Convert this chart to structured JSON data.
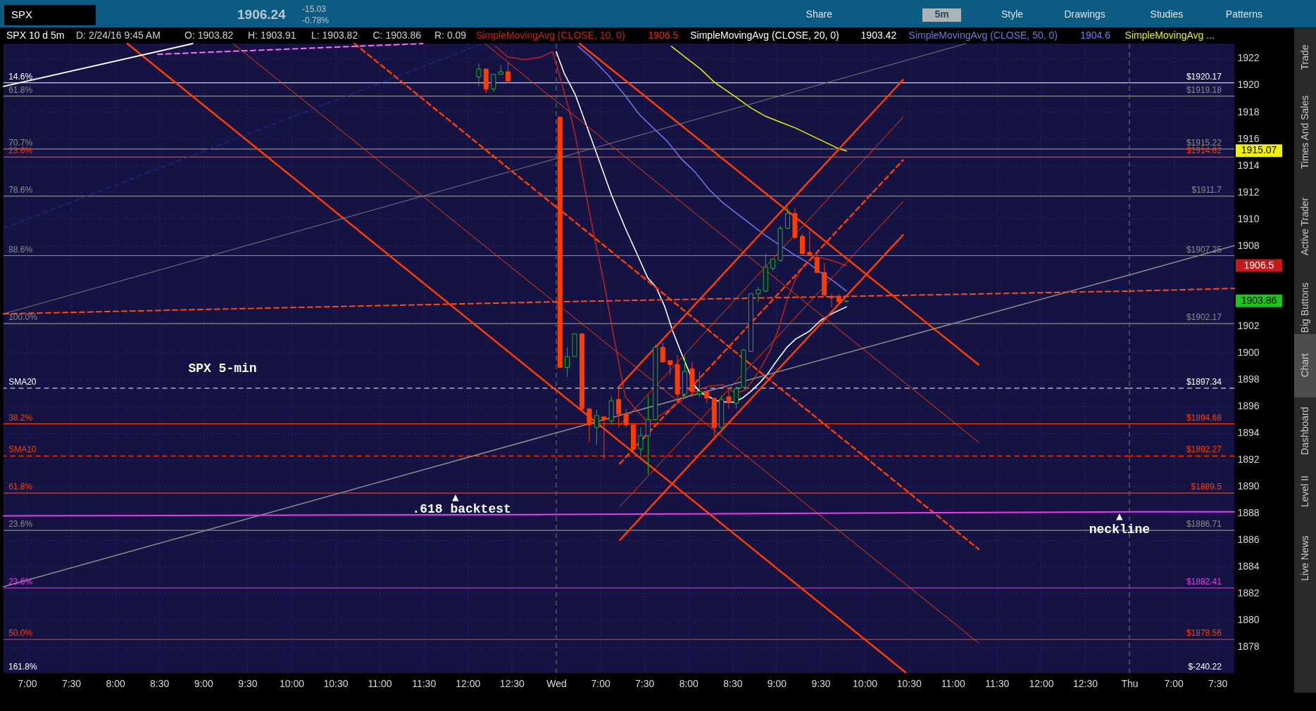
{
  "chart_data": [
    {
      "type": "candlestick",
      "title": "SPX 10 d 5m",
      "x": [
        12.125,
        12.208,
        12.292,
        12.375,
        12.458
      ],
      "ohlc": [
        [
          1920.6,
          1921.6,
          1919.9,
          1921.2
        ],
        [
          1921.2,
          1921.2,
          1919.4,
          1919.7
        ],
        [
          1919.7,
          1920.8,
          1919.5,
          1920.8
        ],
        [
          1920.8,
          1921.5,
          1920.8,
          1921.0
        ],
        [
          1921.0,
          1921.7,
          1920.3,
          1920.3
        ]
      ],
      "colors": [
        "#1db31d",
        "#ff3c00",
        "#1db31d",
        "#1db31d",
        "#ff3c00"
      ],
      "series": [
        {
          "type": "line",
          "color": "#c4201c",
          "x": [
            12.314,
            12.456,
            12.646,
            12.836,
            12.962,
            13.0
          ],
          "values": [
            1922.9,
            1922.1,
            1921.9,
            1922.1,
            1922.5,
            1921.6
          ]
        },
        {
          "type": "line",
          "color": "#ff3c00",
          "x": [
            8.138,
            13.0
          ],
          "values": [
            1923.1,
            1897.2
          ]
        },
        {
          "type": "line",
          "color": "#ff3c00",
          "x": [
            9.337,
            13.0
          ],
          "values": [
            1923.1,
            1903.7
          ]
        },
        {
          "type": "line",
          "color": "#ff3c00",
          "line_style": "dashed",
          "x": [
            10.716,
            13.0
          ],
          "values": [
            1923.1,
            1910.9
          ]
        },
        {
          "type": "line",
          "color": "#ff3c00",
          "x": [
            12.195,
            13.0
          ],
          "values": [
            1923.1,
            1918.8
          ]
        },
        {
          "type": "line",
          "color": "#8c8c8c",
          "x": [
            6.733,
            13.0
          ],
          "values": [
            1882.5,
            1894.0
          ]
        },
        {
          "type": "line",
          "color": "#7a7a7a",
          "x": [
            6.733,
            13.0
          ],
          "values": [
            1902.9,
            1914.5
          ]
        },
        {
          "type": "line",
          "color": "#ffffff",
          "x": [
            6.733,
            8.879
          ],
          "values": [
            1919.9,
            1923.1
          ]
        },
        {
          "type": "line",
          "color": "#ff6cff",
          "line_style": "dashed",
          "x": [
            8.482,
            11.488
          ],
          "values": [
            1922.3,
            1923.1
          ]
        },
        {
          "type": "line",
          "color": "#2a2a8c",
          "line_style": "dashed",
          "x": [
            6.733,
            12.167
          ],
          "values": [
            1909.3,
            1923.1
          ]
        },
        {
          "type": "line",
          "color": "#ff4a14",
          "line_style": "dashed",
          "x": [
            6.733,
            13.0
          ],
          "values": [
            1902.9,
            1903.8
          ]
        },
        {
          "type": "line",
          "color": "#e040e6",
          "x": [
            6.733,
            13.0
          ],
          "values": [
            1887.8,
            1887.9
          ]
        }
      ],
      "xlim": [
        6.733,
        13.0
      ],
      "ylim": [
        1876.05,
        1923.1
      ],
      "xticks": [
        {
          "value": 7,
          "label": "7:00"
        },
        {
          "value": 7.5,
          "label": "7:30"
        },
        {
          "value": 8,
          "label": "8:00"
        },
        {
          "value": 8.5,
          "label": "8:30"
        },
        {
          "value": 9,
          "label": "9:00"
        },
        {
          "value": 9.5,
          "label": "9:30"
        },
        {
          "value": 10,
          "label": "10:00"
        },
        {
          "value": 10.5,
          "label": "10:30"
        },
        {
          "value": 11,
          "label": "11:00"
        },
        {
          "value": 11.5,
          "label": "11:30"
        },
        {
          "value": 12,
          "label": "12:00"
        },
        {
          "value": 12.5,
          "label": "12:30"
        }
      ],
      "yticks": [
        1878,
        1880,
        1882,
        1884,
        1886,
        1888,
        1890,
        1892,
        1894,
        1896,
        1898,
        1900,
        1902,
        1908,
        1910,
        1912,
        1914,
        1916,
        1918,
        1920,
        1922
      ],
      "tick_labels": "x",
      "ref_lines": [
        {
          "axis": "y",
          "value": 1920.17,
          "color": "#ffffff"
        },
        {
          "axis": "y",
          "value": 1919.18,
          "color": "#8c8c8c"
        },
        {
          "axis": "y",
          "value": 1915.22,
          "color": "#8c8c8c"
        },
        {
          "axis": "y",
          "value": 1914.62,
          "color": "#ff3c00"
        },
        {
          "axis": "y",
          "value": 1911.7,
          "color": "#8c8c8c"
        },
        {
          "axis": "y",
          "value": 1907.25,
          "color": "#8c8c8c"
        },
        {
          "axis": "y",
          "value": 1902.17,
          "color": "#8c8c8c"
        },
        {
          "axis": "y",
          "value": 1897.34,
          "color": "#ffffff",
          "line_style": "dashed"
        },
        {
          "axis": "y",
          "value": 1894.68,
          "color": "#ff3c00"
        },
        {
          "axis": "y",
          "value": 1892.27,
          "color": "#ff3c00",
          "line_style": "dashed"
        },
        {
          "axis": "y",
          "value": 1889.5,
          "color": "#ff3c00"
        },
        {
          "axis": "y",
          "value": 1886.71,
          "color": "#8c8c8c"
        },
        {
          "axis": "y",
          "value": 1882.41,
          "color": "#e040e6"
        },
        {
          "axis": "y",
          "value": 1878.56,
          "color": "#ff3c00"
        }
      ],
      "annotations": [
        "SPX",
        "1906.24",
        "-15.03",
        "-0.78%",
        "Share",
        "5m",
        "Style",
        "Drawings",
        "Studies",
        "Patterns",
        "D: 2/24/16 9:45 AM",
        "O: 1903.82",
        "H: 1903.91",
        "L: 1903.82",
        "C: 1903.86",
        "R: 0.09",
        "SPX 5-min",
        "161.8%",
        ".618 backtest",
        {
          "text": "14.6%",
          "x": 6.79,
          "y": 1920.17
        },
        {
          "text": "61.8%",
          "x": 6.79,
          "y": 1919.18
        },
        {
          "text": "70.7%",
          "x": 6.79,
          "y": 1915.22
        },
        {
          "text": "23.6%",
          "x": 6.79,
          "y": 1914.62
        },
        {
          "text": "78.6%",
          "x": 6.79,
          "y": 1911.7
        },
        {
          "text": "88.6%",
          "x": 6.79,
          "y": 1907.25
        },
        {
          "text": "100.0%",
          "x": 6.79,
          "y": 1902.17
        },
        {
          "text": "SMA20",
          "x": 6.79,
          "y": 1897.34
        },
        {
          "text": "38.2%",
          "x": 6.79,
          "y": 1894.68
        },
        {
          "text": "SMA10",
          "x": 6.79,
          "y": 1892.27
        },
        {
          "text": "61.8%",
          "x": 6.79,
          "y": 1889.5
        },
        {
          "text": "23.6%",
          "x": 6.79,
          "y": 1886.71
        },
        {
          "text": "23.6%",
          "x": 6.79,
          "y": 1882.41
        },
        {
          "text": "50.0%",
          "x": 6.79,
          "y": 1878.56
        },
        {
          "text": "▲",
          "x": 11.86,
          "y": 1889.5
        }
      ],
      "grid": true
    },
    {
      "type": "candlestick",
      "x": [
        6.542,
        6.625,
        6.708,
        6.792,
        6.875,
        6.958,
        7.042,
        7.125,
        7.208,
        7.292,
        7.375,
        7.458,
        7.542,
        7.625,
        7.708,
        7.792,
        7.875,
        7.958,
        8.042,
        8.125,
        8.208,
        8.292,
        8.375,
        8.458,
        8.542,
        8.625,
        8.708,
        8.792,
        8.875,
        8.958,
        9.042,
        9.125,
        9.208,
        9.292,
        9.375,
        9.458,
        9.542,
        9.625,
        9.708,
        9.792
      ],
      "ohlc": [
        [
          1917.6,
          1917.6,
          1898.9,
          1898.9
        ],
        [
          1898.9,
          1900.4,
          1898.2,
          1899.7
        ],
        [
          1899.7,
          1901.4,
          1899.7,
          1901.4
        ],
        [
          1901.4,
          1901.4,
          1895.6,
          1895.8
        ],
        [
          1895.8,
          1895.8,
          1893.3,
          1894.6
        ],
        [
          1894.4,
          1895.7,
          1893.1,
          1895.3
        ],
        [
          1895.2,
          1895.2,
          1892.0,
          1895.0
        ],
        [
          1894.9,
          1896.7,
          1894.6,
          1896.4
        ],
        [
          1896.5,
          1897.3,
          1894.4,
          1895.4
        ],
        [
          1895.4,
          1895.8,
          1894.4,
          1894.6
        ],
        [
          1894.6,
          1894.6,
          1892.6,
          1892.8
        ],
        [
          1892.8,
          1894.4,
          1892.2,
          1893.8
        ],
        [
          1893.8,
          1896.8,
          1890.9,
          1895.0
        ],
        [
          1895.0,
          1900.6,
          1894.9,
          1900.4
        ],
        [
          1900.4,
          1900.7,
          1899.3,
          1899.3
        ],
        [
          1899.4,
          1899.4,
          1898.3,
          1899.1
        ],
        [
          1899.1,
          1899.8,
          1896.4,
          1896.9
        ],
        [
          1896.9,
          1899.8,
          1896.7,
          1898.6
        ],
        [
          1898.8,
          1899.3,
          1896.7,
          1897.1
        ],
        [
          1896.9,
          1898.6,
          1896.7,
          1897.1
        ],
        [
          1897.1,
          1897.2,
          1896.2,
          1896.6
        ],
        [
          1896.6,
          1896.6,
          1893.7,
          1894.4
        ],
        [
          1894.4,
          1896.8,
          1894.3,
          1896.5
        ],
        [
          1896.7,
          1897.2,
          1895.8,
          1896.3
        ],
        [
          1896.2,
          1897.5,
          1895.8,
          1897.3
        ],
        [
          1897.4,
          1900.3,
          1897.4,
          1900.2
        ],
        [
          1900.1,
          1904.4,
          1900.1,
          1904.4
        ],
        [
          1904.4,
          1904.9,
          1903.8,
          1904.7
        ],
        [
          1904.6,
          1907.4,
          1904.5,
          1906.4
        ],
        [
          1906.3,
          1907.0,
          1906.1,
          1907.0
        ],
        [
          1906.9,
          1909.5,
          1906.8,
          1909.3
        ],
        [
          1909.3,
          1910.9,
          1909.3,
          1910.4
        ],
        [
          1910.4,
          1910.8,
          1908.5,
          1908.6
        ],
        [
          1908.7,
          1908.9,
          1907.3,
          1907.4
        ],
        [
          1907.5,
          1909.1,
          1907.2,
          1907.3
        ],
        [
          1907.1,
          1907.4,
          1905.9,
          1906.0
        ],
        [
          1906.0,
          1906.7,
          1904.2,
          1904.3
        ],
        [
          1904.2,
          1904.4,
          1903.4,
          1904.1
        ],
        [
          1904.2,
          1904.4,
          1903.7,
          1903.8
        ],
        [
          1903.82,
          1903.91,
          1903.82,
          1903.86
        ]
      ],
      "colors": [
        "#ff3c00",
        "#1db31d",
        "#1db31d",
        "#ff3c00",
        "#ff3c00",
        "#1db31d",
        "#ff3c00",
        "#1db31d",
        "#ff3c00",
        "#ff3c00",
        "#ff3c00",
        "#1db31d",
        "#1db31d",
        "#1db31d",
        "#ff3c00",
        "#ff3c00",
        "#ff3c00",
        "#1db31d",
        "#ff3c00",
        "#1db31d",
        "#ff3c00",
        "#ff3c00",
        "#1db31d",
        "#ff3c00",
        "#1db31d",
        "#1db31d",
        "#1db31d",
        "#1db31d",
        "#1db31d",
        "#1db31d",
        "#1db31d",
        "#1db31d",
        "#ff3c00",
        "#ff3c00",
        "#ff3c00",
        "#ff3c00",
        "#ff3c00",
        "#ff3c00",
        "#ff3c00",
        "#1db31d"
      ],
      "series": [
        {
          "name": "SimpleMovingAvg (CLOSE, 10, 0)",
          "type": "line",
          "color": "#c4201c",
          "x": [
            6.5,
            6.525,
            6.652,
            6.715,
            6.826,
            6.936,
            7.031,
            7.158,
            7.284,
            7.411,
            7.537,
            7.632,
            7.79,
            7.917,
            8.075,
            8.233,
            8.391,
            8.47,
            8.549,
            8.644,
            8.739,
            8.834,
            8.929,
            9.023,
            9.118,
            9.213,
            9.308,
            9.403,
            9.498,
            9.624,
            9.792
          ],
          "values": [
            1921.6,
            1921.0,
            1918.0,
            1916.3,
            1912.2,
            1908.5,
            1905.6,
            1901.0,
            1896.7,
            1895.7,
            1894.8,
            1895.1,
            1895.8,
            1896.4,
            1897.1,
            1897.5,
            1897.6,
            1897.2,
            1897.0,
            1897.2,
            1898.0,
            1899.0,
            1900.2,
            1901.8,
            1903.9,
            1905.5,
            1906.5,
            1907.1,
            1907.1,
            1906.9,
            1906.5
          ]
        },
        {
          "name": "SimpleMovingAvg (CLOSE, 20, 0)",
          "type": "line",
          "color": "#ffffff",
          "x": [
            6.5,
            6.589,
            6.715,
            6.842,
            6.968,
            7.126,
            7.284,
            7.442,
            7.537,
            7.632,
            7.727,
            7.822,
            7.917,
            8.011,
            8.075,
            8.138,
            8.233,
            8.328,
            8.423,
            8.517,
            8.612,
            8.707,
            8.802,
            8.897,
            8.992,
            9.118,
            9.213,
            9.371,
            9.498,
            9.624,
            9.792
          ],
          "values": [
            1922.5,
            1920.9,
            1919.3,
            1917.0,
            1914.7,
            1911.8,
            1909.3,
            1907.0,
            1905.6,
            1904.9,
            1903.5,
            1901.6,
            1900.0,
            1898.5,
            1897.5,
            1897.0,
            1896.7,
            1896.4,
            1896.3,
            1896.3,
            1896.6,
            1897.1,
            1897.7,
            1898.4,
            1899.3,
            1900.4,
            1901.0,
            1901.6,
            1902.4,
            1902.9,
            1903.42
          ]
        },
        {
          "name": "SimpleMovingAvg (CLOSE, 50, 0)",
          "type": "line",
          "color": "#7474e8",
          "x": [
            6.747,
            6.905,
            7.095,
            7.284,
            7.442,
            7.6,
            7.759,
            7.917,
            8.075,
            8.233,
            8.391,
            8.549,
            8.707,
            8.865,
            9.023,
            9.182,
            9.34,
            9.498,
            9.656,
            9.792
          ],
          "values": [
            1922.9,
            1922.0,
            1920.7,
            1919.2,
            1917.8,
            1916.8,
            1915.8,
            1914.5,
            1913.5,
            1912.2,
            1911.2,
            1910.4,
            1909.6,
            1908.8,
            1908.1,
            1907.4,
            1906.8,
            1906.0,
            1905.3,
            1904.6
          ]
        },
        {
          "name": "SimpleMovingAvg ...",
          "type": "line",
          "color": "#e8f000",
          "x": [
            7.806,
            7.98,
            8.138,
            8.296,
            8.517,
            8.707,
            8.865,
            9.055,
            9.213,
            9.371,
            9.529,
            9.688,
            9.792
          ],
          "values": [
            1922.9,
            1922.0,
            1921.2,
            1920.2,
            1919.2,
            1918.3,
            1917.7,
            1917.2,
            1916.8,
            1916.3,
            1915.8,
            1915.3,
            1915.07
          ]
        },
        {
          "type": "line",
          "color": "#ff3c00",
          "x": [
            6.5,
            10.463
          ],
          "values": [
            1897.2,
            1876.1
          ]
        },
        {
          "type": "line",
          "color": "#ff3c00",
          "x": [
            6.5,
            11.292
          ],
          "values": [
            1903.7,
            1878.3
          ]
        },
        {
          "type": "line",
          "color": "#ff3c00",
          "line_style": "dashed",
          "x": [
            6.5,
            11.294
          ],
          "values": [
            1910.9,
            1885.3
          ]
        },
        {
          "type": "line",
          "color": "#ff3c00",
          "x": [
            6.5,
            11.292
          ],
          "values": [
            1918.8,
            1893.3
          ]
        },
        {
          "type": "line",
          "color": "#ff3c00",
          "x": [
            6.765,
            11.292
          ],
          "values": [
            1923.1,
            1899.1
          ]
        },
        {
          "type": "line",
          "color": "#ff3c00",
          "x": [
            7.204,
            10.435
          ],
          "values": [
            1897.4,
            1920.4
          ]
        },
        {
          "type": "line",
          "color": "#ff3c00",
          "x": [
            7.223,
            10.435
          ],
          "values": [
            1894.6,
            1917.6
          ]
        },
        {
          "type": "line",
          "color": "#ff3c00",
          "line_style": "dashed",
          "x": [
            7.221,
            10.435
          ],
          "values": [
            1891.7,
            1914.4
          ]
        },
        {
          "type": "line",
          "color": "#ff3c00",
          "x": [
            7.223,
            10.435
          ],
          "values": [
            1888.5,
            1911.3
          ]
        },
        {
          "type": "line",
          "color": "#ff3c00",
          "x": [
            7.223,
            10.435
          ],
          "values": [
            1886.0,
            1908.8
          ]
        },
        {
          "type": "line",
          "color": "#8c8c8c",
          "x": [
            6.5,
            13.0
          ],
          "values": [
            1894.0,
            1905.8
          ]
        },
        {
          "type": "line",
          "color": "#7a7a7a",
          "x": [
            6.5,
            11.148
          ],
          "values": [
            1914.5,
            1923.1
          ]
        },
        {
          "type": "line",
          "color": "#ff4a14",
          "line_style": "dashed",
          "x": [
            6.5,
            13.0
          ],
          "values": [
            1903.8,
            1904.6
          ]
        },
        {
          "type": "line",
          "color": "#e040e6",
          "x": [
            6.5,
            13.0
          ],
          "values": [
            1887.9,
            1888.1
          ]
        }
      ],
      "xlim": [
        6.5,
        13.0
      ],
      "ylim": [
        1876.05,
        1923.1
      ],
      "xticks": [
        {
          "value": 6.5,
          "label": "Wed"
        },
        {
          "value": 7,
          "label": "7:00"
        },
        {
          "value": 7.5,
          "label": "7:30"
        },
        {
          "value": 8,
          "label": "8:00"
        },
        {
          "value": 8.5,
          "label": "8:30"
        },
        {
          "value": 9,
          "label": "9:00"
        },
        {
          "value": 9.5,
          "label": "9:30"
        },
        {
          "value": 10,
          "label": "10:00"
        },
        {
          "value": 10.5,
          "label": "10:30"
        },
        {
          "value": 11,
          "label": "11:00"
        },
        {
          "value": 11.5,
          "label": "11:30"
        },
        {
          "value": 12,
          "label": "12:00"
        },
        {
          "value": 12.5,
          "label": "12:30"
        }
      ],
      "yticks": [
        1878,
        1880,
        1882,
        1884,
        1886,
        1888,
        1890,
        1892,
        1894,
        1896,
        1898,
        1900,
        1902,
        1908,
        1910,
        1912,
        1914,
        1916,
        1918,
        1920,
        1922
      ],
      "tick_labels": "x",
      "ref_lines": [
        {
          "axis": "y",
          "value": 1920.17,
          "color": "#ffffff"
        },
        {
          "axis": "y",
          "value": 1919.18,
          "color": "#8c8c8c"
        },
        {
          "axis": "y",
          "value": 1915.22,
          "color": "#8c8c8c"
        },
        {
          "axis": "y",
          "value": 1914.62,
          "color": "#ff3c00"
        },
        {
          "axis": "y",
          "value": 1911.7,
          "color": "#8c8c8c"
        },
        {
          "axis": "y",
          "value": 1907.25,
          "color": "#8c8c8c"
        },
        {
          "axis": "y",
          "value": 1902.17,
          "color": "#8c8c8c"
        },
        {
          "axis": "y",
          "value": 1897.34,
          "color": "#ffffff",
          "line_style": "dashed"
        },
        {
          "axis": "y",
          "value": 1894.68,
          "color": "#ff3c00"
        },
        {
          "axis": "y",
          "value": 1892.27,
          "color": "#ff3c00",
          "line_style": "dashed"
        },
        {
          "axis": "y",
          "value": 1889.5,
          "color": "#ff3c00"
        },
        {
          "axis": "y",
          "value": 1886.71,
          "color": "#8c8c8c"
        },
        {
          "axis": "y",
          "value": 1882.41,
          "color": "#e040e6"
        },
        {
          "axis": "y",
          "value": 1878.56,
          "color": "#ff3c00"
        },
        {
          "axis": "x",
          "value": 6.5,
          "color": "#6a6a6a",
          "line_style": "dashed"
        }
      ],
      "annotations": [
        "1906.5",
        "1903.42",
        "1904.6",
        {
          "text": "▲",
          "x": 12.89,
          "y": 1888.1
        }
      ],
      "grid": true,
      "legend": "top"
    },
    {
      "type": "line",
      "series": [
        {
          "type": "line",
          "color": "#8c8c8c",
          "x": [
            6.5,
            7.69
          ],
          "values": [
            1905.8,
            1908.0
          ]
        },
        {
          "type": "line",
          "color": "#ff4a14",
          "line_style": "dashed",
          "x": [
            6.5,
            7.69
          ],
          "values": [
            1904.6,
            1904.8
          ]
        },
        {
          "type": "line",
          "color": "#e040e6",
          "x": [
            6.5,
            7.69
          ],
          "values": [
            1888.1,
            1888.1
          ]
        }
      ],
      "xlim": [
        6.5,
        7.69
      ],
      "ylim": [
        1876.05,
        1923.1
      ],
      "xticks": [
        {
          "value": 6.5,
          "label": "Thu"
        },
        {
          "value": 7,
          "label": "7:00"
        },
        {
          "value": 7.5,
          "label": "7:30"
        }
      ],
      "yticks": [
        1878,
        1880,
        1882,
        1884,
        1886,
        1888,
        1890,
        1892,
        1894,
        1896,
        1898,
        1900,
        1902,
        1908,
        1910,
        1912,
        1914,
        1916,
        1918,
        1920,
        1922
      ],
      "ref_lines": [
        {
          "axis": "y",
          "value": 1920.17,
          "label": "$1920.17",
          "color": "#ffffff"
        },
        {
          "axis": "y",
          "value": 1919.18,
          "label": "$1919.18",
          "color": "#8c8c8c"
        },
        {
          "axis": "y",
          "value": 1915.22,
          "label": "$1915.22",
          "color": "#8c8c8c"
        },
        {
          "axis": "y",
          "value": 1914.62,
          "label": "$1914.62",
          "color": "#ff3c00"
        },
        {
          "axis": "y",
          "value": 1911.7,
          "label": "$1911.7",
          "color": "#8c8c8c"
        },
        {
          "axis": "y",
          "value": 1907.25,
          "label": "$1907.25",
          "color": "#8c8c8c"
        },
        {
          "axis": "y",
          "value": 1902.17,
          "label": "$1902.17",
          "color": "#8c8c8c"
        },
        {
          "axis": "y",
          "value": 1897.34,
          "label": "$1897.34",
          "color": "#ffffff",
          "line_style": "dashed"
        },
        {
          "axis": "y",
          "value": 1894.68,
          "label": "$1894.68",
          "color": "#ff3c00"
        },
        {
          "axis": "y",
          "value": 1892.27,
          "label": "$1892.27",
          "color": "#ff3c00",
          "line_style": "dashed"
        },
        {
          "axis": "y",
          "value": 1889.5,
          "label": "$1889.5",
          "color": "#ff3c00"
        },
        {
          "axis": "y",
          "value": 1886.71,
          "label": "$1886.71",
          "color": "#8c8c8c"
        },
        {
          "axis": "y",
          "value": 1882.41,
          "label": "$1882.41",
          "color": "#e040e6"
        },
        {
          "axis": "y",
          "value": 1878.56,
          "label": "$1878.56",
          "color": "#ff3c00"
        },
        {
          "axis": "x",
          "value": 6.5,
          "color": "#6a6a6a",
          "line_style": "dashed"
        }
      ],
      "annotations": [
        "Trade",
        "Times And Sales",
        "Active Trader",
        "Big Buttons",
        "Chart",
        "Dashboard",
        "Level II",
        "Live News",
        "$-240.22",
        "1915.07",
        "1906.5",
        "1903.86",
        "neckline"
      ],
      "grid": true
    }
  ]
}
